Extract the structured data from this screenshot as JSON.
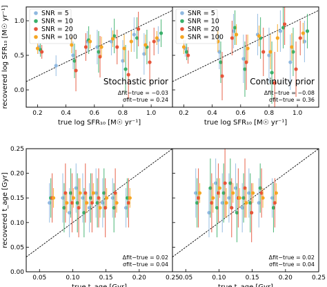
{
  "figure": {
    "snr_colors": {
      "5": "#8fb8e0",
      "10": "#3bb06b",
      "20": "#e6553a",
      "100": "#f5a623"
    },
    "legend": [
      "SNR = 5",
      "SNR = 10",
      "SNR = 20",
      "SNR = 100"
    ]
  },
  "chart_data": [
    {
      "id": "sfr-stochastic",
      "type": "scatter",
      "title": "Stochastic prior",
      "xlabel": "true log SFR₁₀ [M☉ yr⁻¹]",
      "ylabel": "recovered log SFR₁₀ [M☉ yr⁻¹]",
      "xlim": [
        0.12,
        1.15
      ],
      "ylim": [
        -0.25,
        1.2
      ],
      "xticks": [
        "0.2",
        "0.4",
        "0.6",
        "0.8",
        "1.0"
      ],
      "xtick_vals": [
        0.2,
        0.4,
        0.6,
        0.8,
        1.0
      ],
      "yticks": [
        "0.0",
        "0.5",
        "1.0"
      ],
      "ytick_vals": [
        0.0,
        0.5,
        1.0
      ],
      "annotations": [
        "Δfit−true = −0.03",
        "σfit−true = 0.24"
      ],
      "series": [
        {
          "name": "SNR = 5",
          "color": "#8fb8e0",
          "x": [
            0.21,
            0.45,
            0.55,
            0.62,
            0.72,
            0.8,
            0.88,
            0.95,
            1.05,
            0.33
          ],
          "y": [
            0.62,
            0.5,
            0.7,
            0.62,
            0.7,
            0.42,
            0.8,
            0.52,
            0.72,
            0.35
          ],
          "err": [
            0.1,
            0.2,
            0.15,
            0.25,
            0.2,
            0.3,
            0.25,
            0.3,
            0.2,
            0.15
          ]
        },
        {
          "name": "SNR = 10",
          "color": "#3bb06b",
          "x": [
            0.22,
            0.46,
            0.56,
            0.63,
            0.74,
            0.82,
            0.9,
            0.97,
            1.07
          ],
          "y": [
            0.58,
            0.42,
            0.72,
            0.55,
            0.78,
            0.3,
            0.75,
            0.62,
            0.82
          ],
          "err": [
            0.1,
            0.25,
            0.2,
            0.3,
            0.25,
            0.35,
            0.3,
            0.25,
            0.2
          ]
        },
        {
          "name": "SNR = 20",
          "color": "#e6553a",
          "x": [
            0.23,
            0.47,
            0.54,
            0.64,
            0.76,
            0.84,
            0.91,
            0.99,
            1.02
          ],
          "y": [
            0.55,
            0.28,
            0.62,
            0.48,
            0.62,
            0.22,
            0.88,
            0.4,
            0.7
          ],
          "err": [
            0.1,
            0.3,
            0.2,
            0.3,
            0.25,
            0.35,
            0.25,
            0.3,
            0.2
          ]
        },
        {
          "name": "SNR = 100",
          "color": "#f5a623",
          "x": [
            0.2,
            0.44,
            0.57,
            0.65,
            0.73,
            0.81,
            0.86,
            0.96,
            1.04
          ],
          "y": [
            0.6,
            0.65,
            0.7,
            0.62,
            0.74,
            0.6,
            0.7,
            0.65,
            0.75
          ],
          "err": [
            0.08,
            0.12,
            0.1,
            0.15,
            0.12,
            0.2,
            0.15,
            0.15,
            0.1
          ]
        }
      ]
    },
    {
      "id": "sfr-continuity",
      "type": "scatter",
      "title": "Continuity prior",
      "xlabel": "true log SFR₁₀ [M☉ yr⁻¹]",
      "xlim": [
        0.12,
        1.15
      ],
      "ylim": [
        -0.25,
        1.2
      ],
      "xticks": [
        "0.2",
        "0.4",
        "0.6",
        "0.8",
        "1.0"
      ],
      "xtick_vals": [
        0.2,
        0.4,
        0.6,
        0.8,
        1.0
      ],
      "annotations": [
        "Δfit−true = −0.08",
        "σfit−true = 0.36"
      ],
      "series": [
        {
          "name": "SNR = 5",
          "color": "#8fb8e0",
          "x": [
            0.21,
            0.45,
            0.55,
            0.62,
            0.72,
            0.8,
            0.88,
            0.95,
            1.05
          ],
          "y": [
            0.6,
            0.55,
            0.85,
            0.45,
            0.8,
            0.5,
            0.85,
            0.4,
            0.7
          ],
          "err": [
            0.12,
            0.25,
            0.25,
            0.35,
            0.3,
            0.4,
            0.3,
            0.4,
            0.3
          ]
        },
        {
          "name": "SNR = 10",
          "color": "#3bb06b",
          "x": [
            0.22,
            0.46,
            0.56,
            0.63,
            0.74,
            0.82,
            0.9,
            0.97,
            1.07
          ],
          "y": [
            0.55,
            0.4,
            0.9,
            0.3,
            0.75,
            0.25,
            0.9,
            0.55,
            0.85
          ],
          "err": [
            0.12,
            0.3,
            0.25,
            0.4,
            0.3,
            0.45,
            0.3,
            0.35,
            0.25
          ]
        },
        {
          "name": "SNR = 20",
          "color": "#e6553a",
          "x": [
            0.23,
            0.47,
            0.54,
            0.64,
            0.76,
            0.84,
            0.91,
            0.99,
            1.02
          ],
          "y": [
            0.5,
            0.2,
            0.75,
            0.4,
            0.55,
            0.1,
            0.95,
            0.3,
            0.75
          ],
          "err": [
            0.12,
            0.35,
            0.25,
            0.4,
            0.35,
            0.45,
            0.3,
            0.4,
            0.25
          ]
        },
        {
          "name": "SNR = 100",
          "color": "#f5a623",
          "x": [
            0.2,
            0.44,
            0.57,
            0.65,
            0.73,
            0.81,
            0.86,
            0.96,
            1.04
          ],
          "y": [
            0.62,
            0.7,
            0.8,
            0.6,
            0.78,
            0.55,
            0.75,
            0.62,
            0.82
          ],
          "err": [
            0.1,
            0.15,
            0.15,
            0.2,
            0.15,
            0.25,
            0.2,
            0.2,
            0.15
          ]
        }
      ]
    },
    {
      "id": "age-stochastic",
      "type": "scatter",
      "xlabel": "true t_age [Gyr]",
      "ylabel": "recovered t_age [Gyr]",
      "xlim": [
        0.03,
        0.25
      ],
      "ylim": [
        0.0,
        0.25
      ],
      "xticks": [
        "0.05",
        "0.10",
        "0.15",
        "0.20",
        "0.25"
      ],
      "xtick_vals": [
        0.05,
        0.1,
        0.15,
        0.2,
        0.25
      ],
      "yticks": [
        "0.00",
        "0.05",
        "0.10",
        "0.15",
        "0.20",
        "0.25"
      ],
      "ytick_vals": [
        0.0,
        0.05,
        0.1,
        0.15,
        0.2,
        0.25
      ],
      "annotations": [
        "Δfit−true = 0.02",
        "σfit−true = 0.04"
      ],
      "series": [
        {
          "name": "SNR = 5",
          "color": "#8fb8e0",
          "x": [
            0.065,
            0.085,
            0.095,
            0.105,
            0.115,
            0.125,
            0.135,
            0.145,
            0.16,
            0.18
          ],
          "y": [
            0.14,
            0.15,
            0.12,
            0.17,
            0.15,
            0.13,
            0.16,
            0.14,
            0.15,
            0.13
          ],
          "err": [
            0.04,
            0.05,
            0.05,
            0.05,
            0.05,
            0.05,
            0.05,
            0.05,
            0.04,
            0.04
          ]
        },
        {
          "name": "SNR = 10",
          "color": "#3bb06b",
          "x": [
            0.067,
            0.087,
            0.097,
            0.107,
            0.117,
            0.127,
            0.137,
            0.147,
            0.162,
            0.182
          ],
          "y": [
            0.15,
            0.13,
            0.16,
            0.14,
            0.12,
            0.15,
            0.14,
            0.16,
            0.13,
            0.15
          ],
          "err": [
            0.04,
            0.05,
            0.05,
            0.06,
            0.05,
            0.05,
            0.05,
            0.05,
            0.05,
            0.04
          ]
        },
        {
          "name": "SNR = 20",
          "color": "#e6553a",
          "x": [
            0.069,
            0.089,
            0.099,
            0.109,
            0.119,
            0.129,
            0.139,
            0.149,
            0.164,
            0.184
          ],
          "y": [
            0.15,
            0.16,
            0.14,
            0.13,
            0.16,
            0.14,
            0.15,
            0.13,
            0.16,
            0.14
          ],
          "err": [
            0.05,
            0.06,
            0.06,
            0.06,
            0.06,
            0.06,
            0.06,
            0.06,
            0.05,
            0.05
          ]
        },
        {
          "name": "SNR = 100",
          "color": "#f5a623",
          "x": [
            0.071,
            0.091,
            0.101,
            0.111,
            0.121,
            0.131,
            0.141,
            0.151,
            0.166,
            0.186
          ],
          "y": [
            0.15,
            0.14,
            0.15,
            0.16,
            0.14,
            0.16,
            0.13,
            0.15,
            0.14,
            0.15
          ],
          "err": [
            0.02,
            0.02,
            0.02,
            0.03,
            0.02,
            0.02,
            0.02,
            0.02,
            0.02,
            0.02
          ]
        }
      ]
    },
    {
      "id": "age-continuity",
      "type": "scatter",
      "xlabel": "true t_age [Gyr]",
      "xlim": [
        0.03,
        0.25
      ],
      "ylim": [
        0.0,
        0.25
      ],
      "xticks": [
        "0.05",
        "0.10",
        "0.15",
        "0.20",
        "0.25"
      ],
      "xtick_vals": [
        0.05,
        0.1,
        0.15,
        0.2,
        0.25
      ],
      "annotations": [
        "Δfit−true = 0.02",
        "σfit−true = 0.04"
      ],
      "series": [
        {
          "name": "SNR = 5",
          "color": "#8fb8e0",
          "x": [
            0.065,
            0.085,
            0.095,
            0.105,
            0.115,
            0.125,
            0.135,
            0.145,
            0.16,
            0.18
          ],
          "y": [
            0.16,
            0.12,
            0.18,
            0.14,
            0.15,
            0.17,
            0.13,
            0.16,
            0.14,
            0.15
          ],
          "err": [
            0.05,
            0.05,
            0.05,
            0.06,
            0.05,
            0.05,
            0.05,
            0.05,
            0.05,
            0.04
          ]
        },
        {
          "name": "SNR = 10",
          "color": "#3bb06b",
          "x": [
            0.067,
            0.087,
            0.097,
            0.107,
            0.117,
            0.127,
            0.137,
            0.147,
            0.162,
            0.182
          ],
          "y": [
            0.14,
            0.17,
            0.13,
            0.16,
            0.18,
            0.12,
            0.15,
            0.14,
            0.17,
            0.13
          ],
          "err": [
            0.05,
            0.06,
            0.06,
            0.06,
            0.05,
            0.06,
            0.05,
            0.06,
            0.05,
            0.05
          ]
        },
        {
          "name": "SNR = 20",
          "color": "#e6553a",
          "x": [
            0.069,
            0.089,
            0.099,
            0.109,
            0.119,
            0.129,
            0.139,
            0.149,
            0.164,
            0.184
          ],
          "y": [
            0.15,
            0.14,
            0.16,
            0.18,
            0.13,
            0.15,
            0.17,
            0.12,
            0.16,
            0.14
          ],
          "err": [
            0.06,
            0.06,
            0.06,
            0.07,
            0.06,
            0.06,
            0.06,
            0.06,
            0.05,
            0.05
          ]
        },
        {
          "name": "SNR = 100",
          "color": "#f5a623",
          "x": [
            0.071,
            0.091,
            0.101,
            0.111,
            0.121,
            0.131,
            0.141,
            0.151,
            0.166,
            0.186
          ],
          "y": [
            0.16,
            0.15,
            0.17,
            0.14,
            0.16,
            0.15,
            0.14,
            0.16,
            0.15,
            0.16
          ],
          "err": [
            0.02,
            0.03,
            0.02,
            0.03,
            0.02,
            0.02,
            0.03,
            0.02,
            0.02,
            0.02
          ]
        }
      ]
    }
  ]
}
